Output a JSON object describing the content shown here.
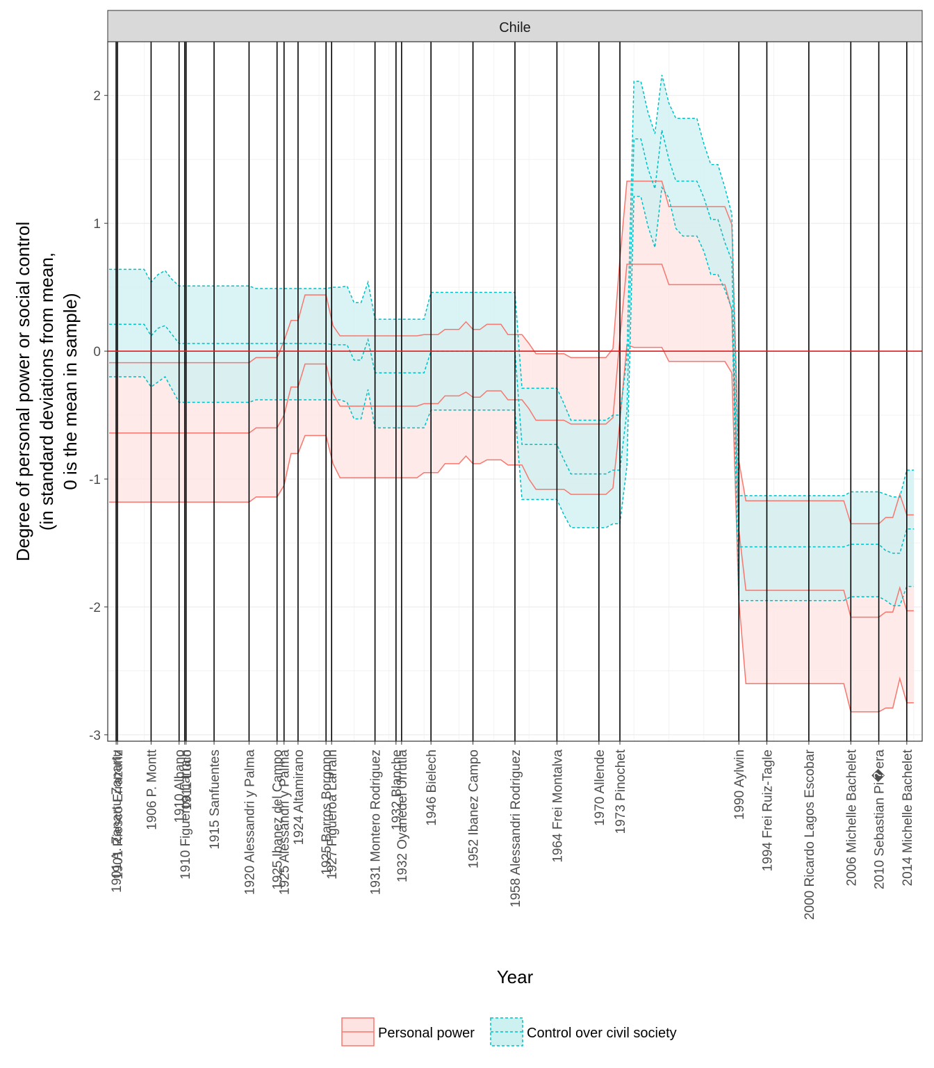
{
  "chart_data": {
    "type": "area",
    "facet_label": "Chile",
    "xlabel": "Year",
    "ylabel_lines": [
      "Degree of personal power or social control",
      "(in standard deviations from mean,",
      "0 is the mean in sample)"
    ],
    "xlim": [
      1899.8,
      2016.2
    ],
    "ylim": [
      -3.05,
      2.42
    ],
    "y_ticks": [
      2,
      1,
      0,
      -1,
      -2,
      -3
    ],
    "y_tick_labels": [
      "2",
      "1",
      "0",
      "-1",
      "-2",
      "-3"
    ],
    "reference_line_y": 0,
    "grid": true,
    "legend_position": "bottom",
    "colors": {
      "personal": "#F8766D",
      "control": "#00BFC4",
      "personal_fill": "#fde3e1",
      "control_fill": "#cdf0f1",
      "overlap_fill": "#c9dcd9",
      "reference": "#e41a1c"
    },
    "leaders": [
      {
        "x": 1901.0,
        "label": "1901 A. Zanartu Zanartu"
      },
      {
        "x": 1901.2,
        "label": "1901 Riesco Errazuriz"
      },
      {
        "x": 1906.0,
        "label": "1906 P. Montt"
      },
      {
        "x": 1910.0,
        "label": "1910 Albano"
      },
      {
        "x": 1910.8,
        "label": "1910 Figueroa Larrain"
      },
      {
        "x": 1911.0,
        "label": "1911 Luco"
      },
      {
        "x": 1915.0,
        "label": "1915 Sanfuentes"
      },
      {
        "x": 1920.0,
        "label": "1920 Alessandri y Palma"
      },
      {
        "x": 1924.0,
        "label": "1925 Ibanez del Campo"
      },
      {
        "x": 1925.0,
        "label": "1925 Alessandri y Palma"
      },
      {
        "x": 1927.0,
        "label": "1924 Altamirano"
      },
      {
        "x": 1931.0,
        "label": "1925 Barros Borgono"
      },
      {
        "x": 1931.8,
        "label": "1927 Figueroa Larrain"
      },
      {
        "x": 1938.0,
        "label": "1931 Montero Rodriguez"
      },
      {
        "x": 1941.0,
        "label": "1932 Blanche"
      },
      {
        "x": 1941.8,
        "label": "1932 Oyanedel Urrutia"
      },
      {
        "x": 1946.0,
        "label": "1946 Bielech"
      },
      {
        "x": 1952.0,
        "label": "1952 Ibanez Campo"
      },
      {
        "x": 1958.0,
        "label": "1958 Alessandri Rodriguez"
      },
      {
        "x": 1964.0,
        "label": "1964 Frei Montalva"
      },
      {
        "x": 1970.0,
        "label": "1970 Allende"
      },
      {
        "x": 1973.0,
        "label": "1973 Pinochet"
      },
      {
        "x": 1990.0,
        "label": "1990 Aylwin"
      },
      {
        "x": 1994.0,
        "label": "1994 Frei Ruiz-Tagle"
      },
      {
        "x": 2000.0,
        "label": "2000 Ricardo Lagos Escobar"
      },
      {
        "x": 2006.0,
        "label": "2006 Michelle Bachelet"
      },
      {
        "x": 2010.0,
        "label": "2010 Sebastian Pi�era"
      },
      {
        "x": 2014.0,
        "label": "2014 Michelle Bachelet"
      }
    ],
    "series": [
      {
        "name": "Personal power",
        "x": [
          1900,
          1920,
          1921,
          1924,
          1925,
          1926,
          1927,
          1928,
          1931,
          1932,
          1933,
          1934,
          1935,
          1936,
          1937,
          1938,
          1939,
          1940,
          1941,
          1942,
          1943,
          1944,
          1945,
          1946,
          1947,
          1948,
          1949,
          1950,
          1951,
          1952,
          1953,
          1954,
          1955,
          1956,
          1957,
          1958,
          1959,
          1960,
          1961,
          1962,
          1963,
          1964,
          1965,
          1966,
          1967,
          1968,
          1969,
          1970,
          1971,
          1972,
          1973,
          1974,
          1975,
          1976,
          1977,
          1978,
          1979,
          1980,
          1981,
          1982,
          1983,
          1984,
          1985,
          1986,
          1987,
          1988,
          1989,
          1990,
          1991,
          1992,
          1993,
          1994,
          1995,
          1996,
          1997,
          1998,
          1999,
          2000,
          2001,
          2002,
          2003,
          2004,
          2005,
          2006,
          2007,
          2008,
          2009,
          2010,
          2011,
          2012,
          2013,
          2014,
          2015
        ],
        "lower": [
          -1.18,
          -1.18,
          -1.14,
          -1.14,
          -1.05,
          -0.8,
          -0.8,
          -0.66,
          -0.66,
          -0.88,
          -0.99,
          -0.99,
          -0.99,
          -0.99,
          -0.99,
          -0.99,
          -0.99,
          -0.99,
          -0.99,
          -0.99,
          -0.99,
          -0.99,
          -0.95,
          -0.95,
          -0.95,
          -0.88,
          -0.88,
          -0.88,
          -0.82,
          -0.88,
          -0.88,
          -0.85,
          -0.85,
          -0.85,
          -0.89,
          -0.89,
          -0.89,
          -1.0,
          -1.08,
          -1.08,
          -1.08,
          -1.08,
          -1.08,
          -1.12,
          -1.12,
          -1.12,
          -1.12,
          -1.12,
          -1.12,
          -1.07,
          -0.55,
          0.05,
          0.03,
          0.03,
          0.03,
          0.03,
          0.03,
          -0.08,
          -0.08,
          -0.08,
          -0.08,
          -0.08,
          -0.08,
          -0.08,
          -0.08,
          -0.08,
          -0.17,
          -1.95,
          -2.6,
          -2.6,
          -2.6,
          -2.6,
          -2.6,
          -2.6,
          -2.6,
          -2.6,
          -2.6,
          -2.6,
          -2.6,
          -2.6,
          -2.6,
          -2.6,
          -2.6,
          -2.82,
          -2.82,
          -2.82,
          -2.82,
          -2.82,
          -2.79,
          -2.79,
          -2.56,
          -2.75,
          -2.75
        ],
        "mean": [
          -0.64,
          -0.64,
          -0.6,
          -0.6,
          -0.5,
          -0.28,
          -0.28,
          -0.1,
          -0.1,
          -0.33,
          -0.43,
          -0.43,
          -0.43,
          -0.43,
          -0.43,
          -0.43,
          -0.43,
          -0.43,
          -0.43,
          -0.43,
          -0.43,
          -0.43,
          -0.41,
          -0.41,
          -0.41,
          -0.35,
          -0.35,
          -0.35,
          -0.32,
          -0.36,
          -0.36,
          -0.31,
          -0.31,
          -0.31,
          -0.38,
          -0.38,
          -0.38,
          -0.45,
          -0.54,
          -0.54,
          -0.54,
          -0.54,
          -0.54,
          -0.57,
          -0.57,
          -0.57,
          -0.57,
          -0.57,
          -0.57,
          -0.52,
          0.1,
          0.68,
          0.68,
          0.68,
          0.68,
          0.68,
          0.68,
          0.52,
          0.52,
          0.52,
          0.52,
          0.52,
          0.52,
          0.52,
          0.52,
          0.52,
          0.32,
          -1.4,
          -1.87,
          -1.87,
          -1.87,
          -1.87,
          -1.87,
          -1.87,
          -1.87,
          -1.87,
          -1.87,
          -1.87,
          -1.87,
          -1.87,
          -1.87,
          -1.87,
          -1.87,
          -2.08,
          -2.08,
          -2.08,
          -2.08,
          -2.08,
          -2.04,
          -2.04,
          -1.85,
          -2.03,
          -2.03
        ],
        "upper": [
          -0.09,
          -0.09,
          -0.05,
          -0.05,
          0.08,
          0.24,
          0.24,
          0.44,
          0.44,
          0.2,
          0.12,
          0.12,
          0.12,
          0.12,
          0.12,
          0.12,
          0.12,
          0.12,
          0.12,
          0.12,
          0.12,
          0.12,
          0.13,
          0.13,
          0.13,
          0.17,
          0.17,
          0.17,
          0.23,
          0.17,
          0.17,
          0.21,
          0.21,
          0.21,
          0.13,
          0.13,
          0.13,
          0.06,
          -0.02,
          -0.02,
          -0.02,
          -0.02,
          -0.02,
          -0.05,
          -0.05,
          -0.05,
          -0.05,
          -0.05,
          -0.05,
          0.02,
          0.72,
          1.33,
          1.33,
          1.33,
          1.33,
          1.33,
          1.33,
          1.13,
          1.13,
          1.13,
          1.13,
          1.13,
          1.13,
          1.13,
          1.13,
          1.13,
          0.99,
          -0.86,
          -1.17,
          -1.17,
          -1.17,
          -1.17,
          -1.17,
          -1.17,
          -1.17,
          -1.17,
          -1.17,
          -1.17,
          -1.17,
          -1.17,
          -1.17,
          -1.17,
          -1.17,
          -1.35,
          -1.35,
          -1.35,
          -1.35,
          -1.35,
          -1.3,
          -1.3,
          -1.12,
          -1.28,
          -1.28
        ]
      },
      {
        "name": "Control over civil society",
        "x": [
          1900,
          1905,
          1906,
          1907,
          1908,
          1909,
          1910,
          1920,
          1921,
          1931,
          1932,
          1933,
          1934,
          1935,
          1936,
          1937,
          1938,
          1939,
          1940,
          1941,
          1942,
          1943,
          1944,
          1945,
          1946,
          1947,
          1948,
          1949,
          1950,
          1951,
          1952,
          1953,
          1954,
          1955,
          1956,
          1957,
          1958,
          1959,
          1960,
          1961,
          1962,
          1963,
          1964,
          1965,
          1966,
          1967,
          1968,
          1969,
          1970,
          1971,
          1972,
          1973,
          1974,
          1975,
          1976,
          1977,
          1978,
          1979,
          1980,
          1981,
          1982,
          1983,
          1984,
          1985,
          1986,
          1987,
          1988,
          1989,
          1990,
          1991,
          1992,
          1993,
          1994,
          1995,
          1996,
          1997,
          1998,
          1999,
          2000,
          2001,
          2002,
          2003,
          2004,
          2005,
          2006,
          2007,
          2008,
          2009,
          2010,
          2011,
          2012,
          2013,
          2014,
          2015
        ],
        "lower": [
          -0.2,
          -0.2,
          -0.28,
          -0.24,
          -0.2,
          -0.3,
          -0.4,
          -0.4,
          -0.38,
          -0.38,
          -0.38,
          -0.38,
          -0.4,
          -0.53,
          -0.53,
          -0.3,
          -0.6,
          -0.6,
          -0.6,
          -0.6,
          -0.6,
          -0.6,
          -0.6,
          -0.6,
          -0.46,
          -0.46,
          -0.46,
          -0.46,
          -0.46,
          -0.46,
          -0.46,
          -0.46,
          -0.46,
          -0.46,
          -0.46,
          -0.46,
          -0.46,
          -1.16,
          -1.16,
          -1.16,
          -1.16,
          -1.16,
          -1.16,
          -1.28,
          -1.38,
          -1.38,
          -1.38,
          -1.38,
          -1.38,
          -1.38,
          -1.35,
          -1.35,
          -0.9,
          1.21,
          1.21,
          0.98,
          0.81,
          1.28,
          1.2,
          0.96,
          0.9,
          0.9,
          0.9,
          0.78,
          0.6,
          0.6,
          0.48,
          0.33,
          -1.95,
          -1.95,
          -1.95,
          -1.95,
          -1.95,
          -1.95,
          -1.95,
          -1.95,
          -1.95,
          -1.95,
          -1.95,
          -1.95,
          -1.95,
          -1.95,
          -1.95,
          -1.95,
          -1.92,
          -1.92,
          -1.92,
          -1.92,
          -1.92,
          -1.95,
          -1.99,
          -1.99,
          -1.84,
          -1.84
        ],
        "mean": [
          0.21,
          0.21,
          0.12,
          0.18,
          0.2,
          0.13,
          0.06,
          0.06,
          0.06,
          0.06,
          0.05,
          0.05,
          0.05,
          -0.07,
          -0.07,
          0.09,
          -0.17,
          -0.17,
          -0.17,
          -0.17,
          -0.17,
          -0.17,
          -0.17,
          -0.17,
          0.0,
          0.0,
          0.0,
          0.0,
          0.0,
          0.0,
          0.0,
          0.0,
          0.0,
          0.0,
          0.0,
          0.0,
          0.0,
          -0.73,
          -0.73,
          -0.73,
          -0.73,
          -0.73,
          -0.73,
          -0.85,
          -0.96,
          -0.96,
          -0.96,
          -0.96,
          -0.96,
          -0.96,
          -0.93,
          -0.93,
          -0.47,
          1.66,
          1.66,
          1.43,
          1.27,
          1.73,
          1.5,
          1.33,
          1.33,
          1.33,
          1.33,
          1.2,
          1.03,
          1.03,
          0.85,
          0.71,
          -1.53,
          -1.53,
          -1.53,
          -1.53,
          -1.53,
          -1.53,
          -1.53,
          -1.53,
          -1.53,
          -1.53,
          -1.53,
          -1.53,
          -1.53,
          -1.53,
          -1.53,
          -1.53,
          -1.51,
          -1.51,
          -1.51,
          -1.51,
          -1.51,
          -1.56,
          -1.58,
          -1.58,
          -1.39,
          -1.39
        ],
        "upper": [
          0.64,
          0.64,
          0.54,
          0.6,
          0.63,
          0.56,
          0.51,
          0.51,
          0.49,
          0.49,
          0.5,
          0.5,
          0.51,
          0.38,
          0.38,
          0.54,
          0.25,
          0.25,
          0.25,
          0.25,
          0.25,
          0.25,
          0.25,
          0.25,
          0.46,
          0.46,
          0.46,
          0.46,
          0.46,
          0.46,
          0.46,
          0.46,
          0.46,
          0.46,
          0.46,
          0.46,
          0.46,
          -0.29,
          -0.29,
          -0.29,
          -0.29,
          -0.29,
          -0.29,
          -0.41,
          -0.54,
          -0.54,
          -0.54,
          -0.54,
          -0.54,
          -0.54,
          -0.5,
          -0.5,
          -0.05,
          2.11,
          2.11,
          1.87,
          1.7,
          2.16,
          1.94,
          1.82,
          1.82,
          1.82,
          1.82,
          1.62,
          1.46,
          1.46,
          1.28,
          1.07,
          -1.13,
          -1.13,
          -1.13,
          -1.13,
          -1.13,
          -1.13,
          -1.13,
          -1.13,
          -1.13,
          -1.13,
          -1.13,
          -1.13,
          -1.13,
          -1.13,
          -1.13,
          -1.13,
          -1.1,
          -1.1,
          -1.1,
          -1.1,
          -1.1,
          -1.12,
          -1.14,
          -1.14,
          -0.93,
          -0.93
        ]
      }
    ]
  }
}
